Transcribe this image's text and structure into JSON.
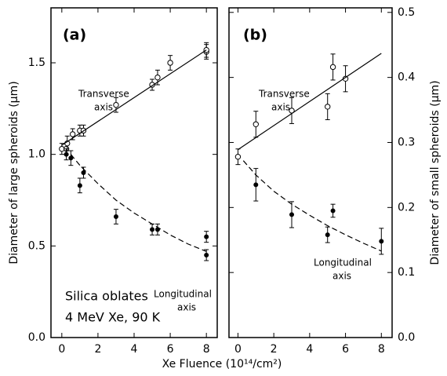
{
  "chart_data": [
    {
      "type": "scatter",
      "xlabel": "Xe Fluence (10¹⁴/cm²)",
      "ylabel": "Diameter of large spheroids (μm)",
      "xlim": [
        -0.6,
        8.6
      ],
      "ylim": [
        0,
        1.8
      ],
      "xticks": [
        0,
        2,
        4,
        6,
        8
      ],
      "yticks": [
        {
          "value": 0,
          "label": "0.0"
        },
        {
          "value": 0.5,
          "label": "0.5"
        },
        {
          "value": 1,
          "label": "1.0"
        },
        {
          "value": 1.5,
          "label": "1.5"
        }
      ],
      "annotations": [
        "(a)",
        "Transverse",
        "axis",
        "Longitudinal",
        "axis",
        "Silica oblates",
        "4 MeV Xe, 90 K"
      ],
      "series": [
        {
          "marker": "open",
          "color": "#000000",
          "x": [
            0,
            0.25,
            0.3,
            0.6,
            1,
            1.2,
            3,
            5,
            5.3,
            6,
            8,
            8
          ],
          "values": [
            1.03,
            1.03,
            1.06,
            1.11,
            1.13,
            1.13,
            1.27,
            1.38,
            1.42,
            1.5,
            1.56,
            1.57
          ],
          "errors": [
            0.03,
            0.03,
            0.04,
            0.03,
            0.03,
            0.03,
            0.04,
            0.03,
            0.04,
            0.04,
            0.04,
            0.04
          ]
        },
        {
          "marker": "filled",
          "color": "#000000",
          "x": [
            0.25,
            0.5,
            1,
            1.2,
            3,
            5,
            5.3,
            8,
            8
          ],
          "values": [
            1.0,
            0.98,
            0.83,
            0.9,
            0.66,
            0.59,
            0.59,
            0.55,
            0.45
          ],
          "errors": [
            0.03,
            0.04,
            0.04,
            0.03,
            0.04,
            0.03,
            0.03,
            0.03,
            0.03
          ]
        },
        {
          "line": "solid",
          "color": "#000000",
          "x": [
            0,
            8
          ],
          "values": [
            1.05,
            1.57
          ]
        },
        {
          "line": "dashed",
          "color": "#000000",
          "x": [
            0.5,
            1,
            2,
            3,
            4,
            5,
            6,
            7,
            8
          ],
          "values": [
            1.0,
            0.94,
            0.84,
            0.75,
            0.68,
            0.62,
            0.56,
            0.51,
            0.47
          ]
        }
      ]
    },
    {
      "type": "scatter",
      "y2label": "Diameter of small spheroids (μm)",
      "xlim": [
        -0.5,
        8.6
      ],
      "y2lim": [
        0,
        0.507
      ],
      "xticks": [
        0,
        2,
        4,
        6,
        8
      ],
      "y2ticks": [
        {
          "value": 0,
          "label": "0.0"
        },
        {
          "value": 0.1,
          "label": "0.1"
        },
        {
          "value": 0.2,
          "label": "0.2"
        },
        {
          "value": 0.3,
          "label": "0.3"
        },
        {
          "value": 0.4,
          "label": "0.4"
        },
        {
          "value": 0.5,
          "label": "0.5"
        }
      ],
      "annotations": [
        "(b)",
        "Transverse",
        "axis",
        "Longitudinal",
        "axis"
      ],
      "series": [
        {
          "marker": "open",
          "axis": "y2",
          "color": "#000000",
          "x": [
            0,
            1,
            3,
            5,
            5.3,
            6
          ],
          "values": [
            0.278,
            0.328,
            0.349,
            0.355,
            0.416,
            0.398
          ],
          "errors": [
            0.012,
            0.02,
            0.02,
            0.02,
            0.02,
            0.02
          ]
        },
        {
          "marker": "filled",
          "axis": "y2",
          "color": "#000000",
          "x": [
            1,
            3,
            5,
            5.3,
            8
          ],
          "values": [
            0.235,
            0.189,
            0.158,
            0.195,
            0.148
          ],
          "errors": [
            0.025,
            0.02,
            0.012,
            0.01,
            0.02
          ]
        },
        {
          "line": "solid",
          "axis": "y2",
          "color": "#000000",
          "x": [
            0,
            8
          ],
          "values": [
            0.289,
            0.437
          ]
        },
        {
          "line": "dashed",
          "axis": "y2",
          "color": "#000000",
          "x": [
            0.3,
            1,
            2,
            3,
            4,
            5,
            6,
            7,
            8
          ],
          "values": [
            0.272,
            0.25,
            0.225,
            0.205,
            0.188,
            0.172,
            0.158,
            0.145,
            0.133
          ]
        }
      ]
    }
  ]
}
